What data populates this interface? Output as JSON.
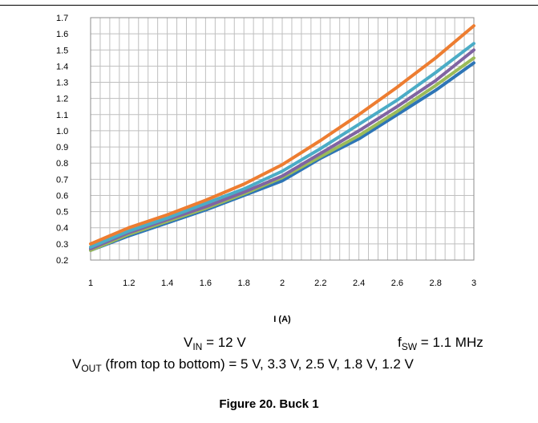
{
  "chart_data": {
    "type": "line",
    "x": [
      1,
      1.2,
      1.4,
      1.6,
      1.8,
      2,
      2.2,
      2.4,
      2.6,
      2.8,
      3
    ],
    "xticks": [
      "1",
      "1.2",
      "1.4",
      "1.6",
      "1.8",
      "2",
      "2.2",
      "2.4",
      "2.6",
      "2.8",
      "3"
    ],
    "yticks": [
      "0.2",
      "0.3",
      "0.4",
      "0.5",
      "0.6",
      "0.7",
      "0.8",
      "0.9",
      "1.0",
      "1.1",
      "1.2",
      "1.3",
      "1.4",
      "1.5",
      "1.6",
      "1.7"
    ],
    "xlim": [
      1,
      3
    ],
    "ylim": [
      0.2,
      1.7
    ],
    "xlabel": "I (A)",
    "grid": true,
    "series": [
      {
        "color": "#ED7D31",
        "values": [
          0.3,
          0.4,
          0.48,
          0.57,
          0.67,
          0.79,
          0.94,
          1.1,
          1.27,
          1.45,
          1.65
        ]
      },
      {
        "color": "#4BACC6",
        "values": [
          0.28,
          0.38,
          0.46,
          0.55,
          0.64,
          0.75,
          0.89,
          1.04,
          1.19,
          1.36,
          1.54
        ]
      },
      {
        "color": "#8064A2",
        "values": [
          0.27,
          0.37,
          0.45,
          0.53,
          0.62,
          0.72,
          0.86,
          1.0,
          1.15,
          1.31,
          1.5
        ]
      },
      {
        "color": "#9BBB59",
        "values": [
          0.26,
          0.36,
          0.44,
          0.52,
          0.61,
          0.71,
          0.84,
          0.97,
          1.12,
          1.28,
          1.45
        ]
      },
      {
        "color": "#2E75B6",
        "values": [
          0.26,
          0.35,
          0.43,
          0.51,
          0.6,
          0.69,
          0.83,
          0.95,
          1.1,
          1.25,
          1.42
        ]
      }
    ]
  },
  "conditions": {
    "vin_label": "V",
    "vin_sub": "IN",
    "vin_value": " = 12 V",
    "fsw_label": "f",
    "fsw_sub": "SW",
    "fsw_value": " = 1.1 MHz",
    "vout_label": "V",
    "vout_sub": "OUT",
    "vout_value": " (from top to bottom) = 5 V, 3.3 V, 2.5 V, 1.8 V, 1.2 V"
  },
  "caption": "Figure 20. Buck 1"
}
